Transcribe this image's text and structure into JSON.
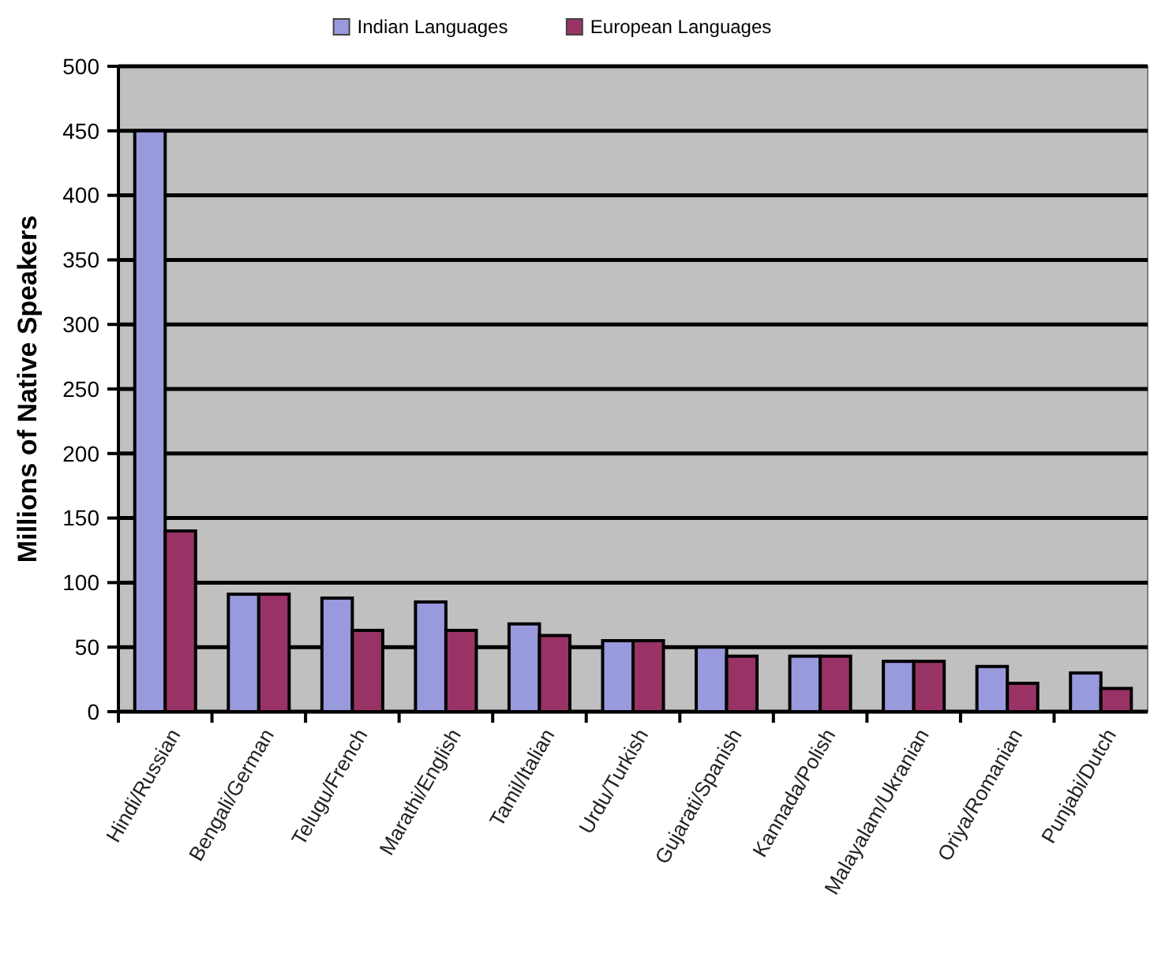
{
  "chart_data": {
    "type": "bar",
    "ylabel": "Millions of Native Speakers",
    "categories": [
      "Hindi/Russian",
      "Bengali/German",
      "Telugu/French",
      "Marathi/English",
      "Tamil/Italian",
      "Urdu/Turkish",
      "Gujarati/Spanish",
      "Kannada/Polish",
      "Malayalam/Ukranian",
      "Oriya/Romanian",
      "Punjabi/Dutch"
    ],
    "series": [
      {
        "name": "Indian Languages",
        "color": "#9999dd",
        "values": [
          450,
          91,
          88,
          85,
          68,
          55,
          50,
          43,
          39,
          35,
          30
        ]
      },
      {
        "name": "European Languages",
        "color": "#993366",
        "values": [
          140,
          91,
          63,
          63,
          59,
          55,
          43,
          43,
          39,
          22,
          18
        ]
      }
    ],
    "ylim": [
      0,
      500
    ],
    "yticks": [
      0,
      50,
      100,
      150,
      200,
      250,
      300,
      350,
      400,
      450,
      500
    ],
    "grid": "y",
    "legend": "top"
  }
}
